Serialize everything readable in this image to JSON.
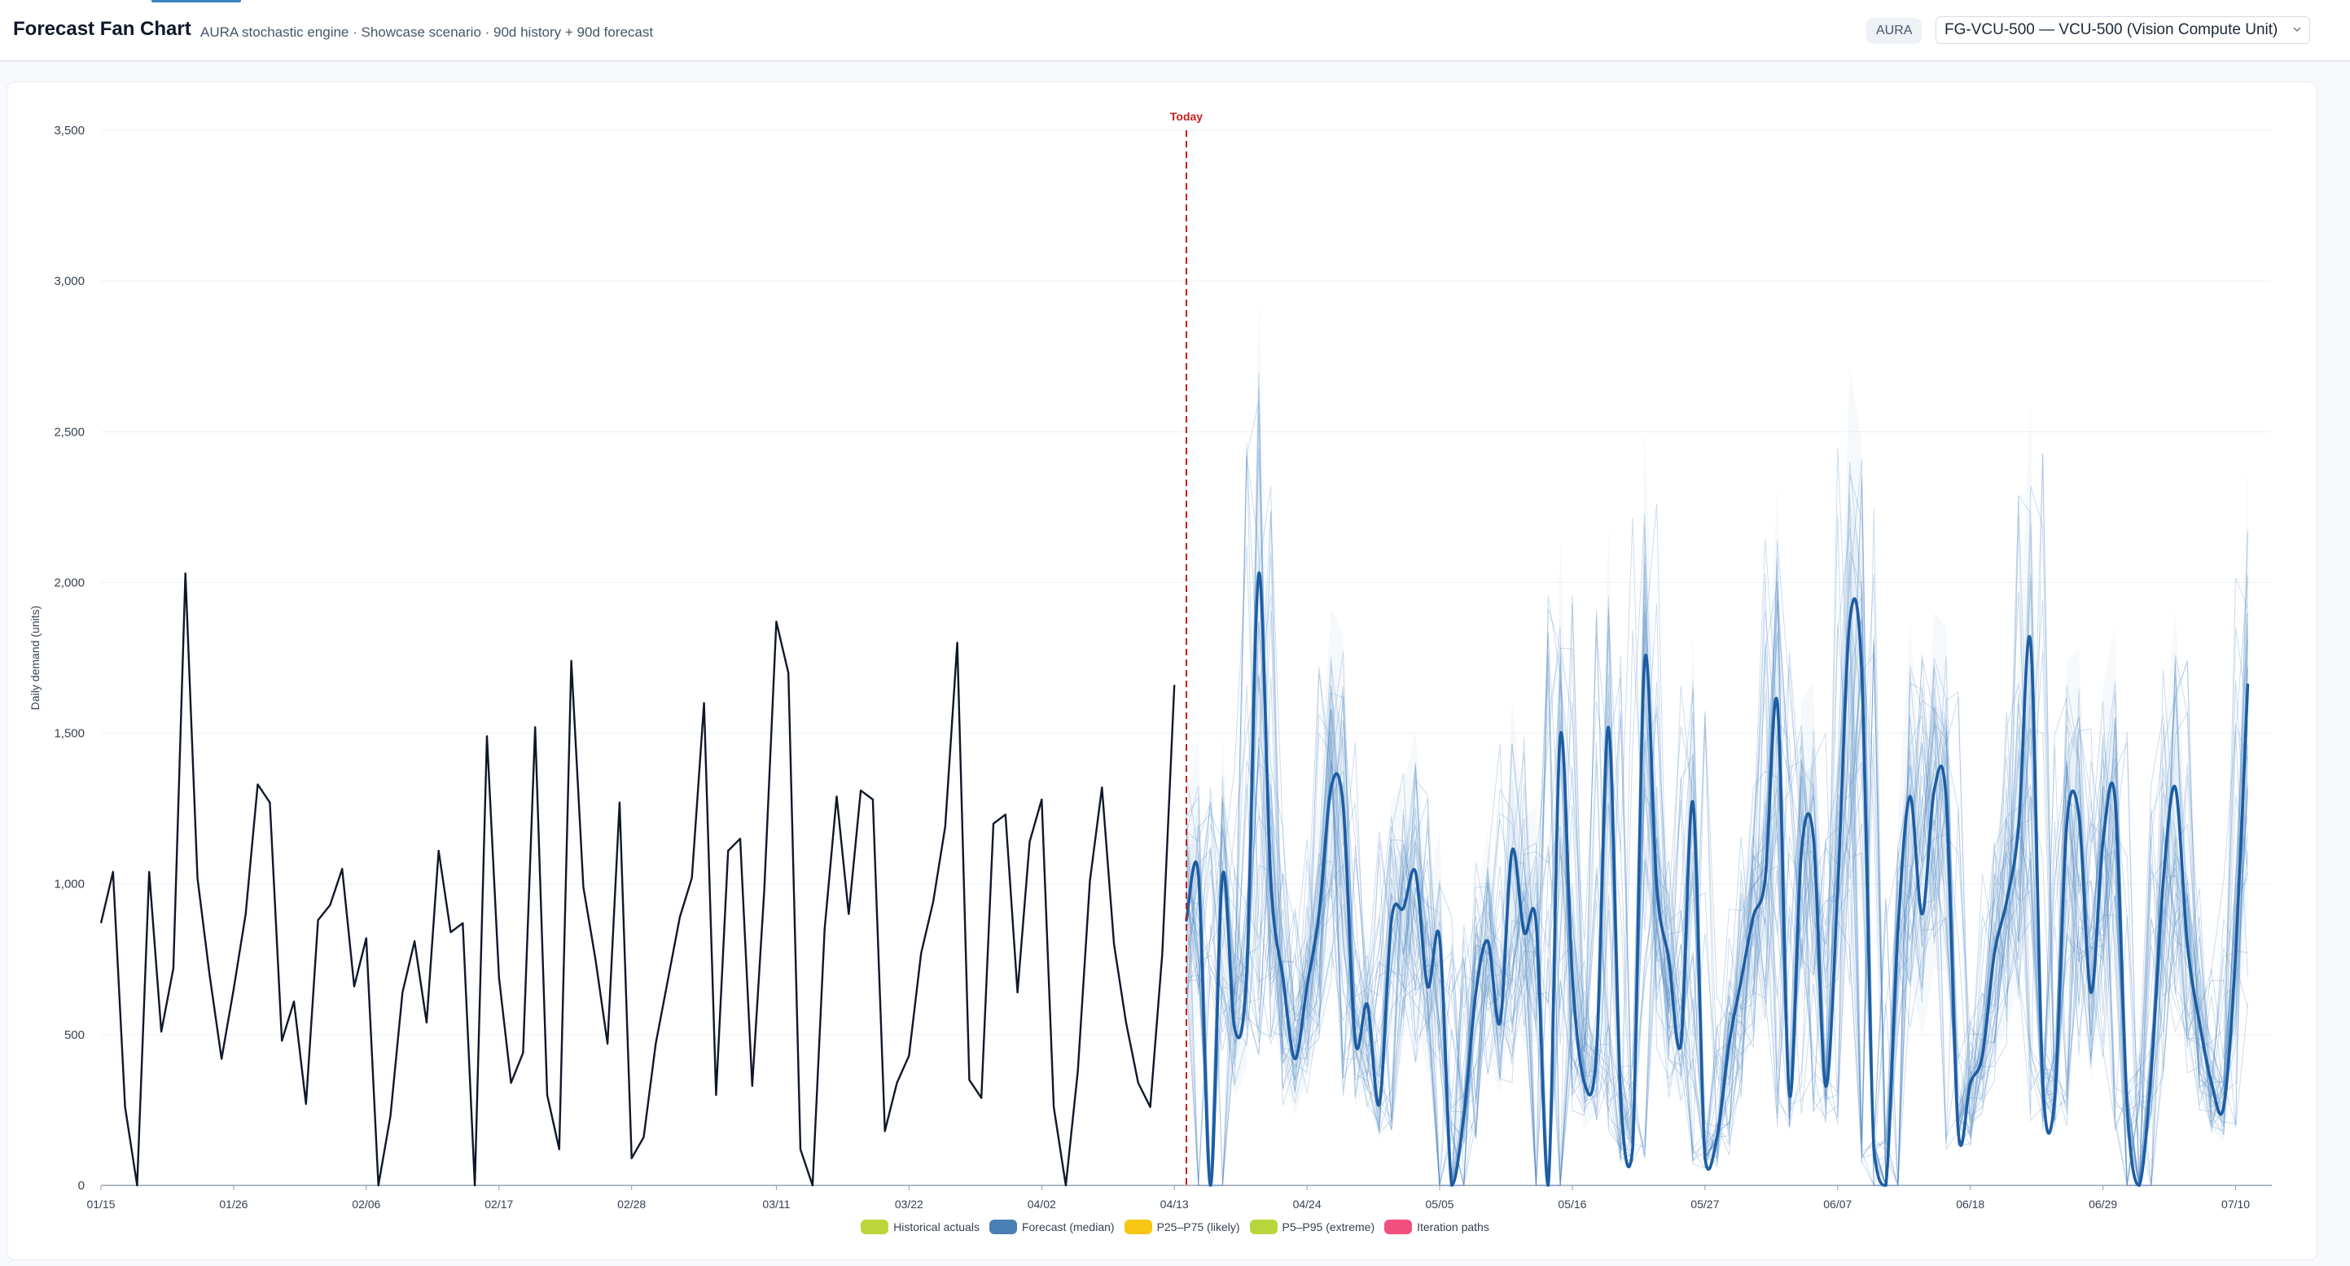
{
  "header": {
    "title": "Forecast Fan Chart",
    "subtitle": "AURA stochastic engine · Showcase scenario · 90d history + 90d forecast",
    "engine_badge": "AURA",
    "product_select": "FG-VCU-500 — VCU-500 (Vision Compute Unit)"
  },
  "colors": {
    "historical": "#0f172a",
    "median": "#1c5da3",
    "iteration_paths": "#4a86c2",
    "today_line": "#c81e1e",
    "legend_historical": "#bcd63c",
    "legend_median": "#4a7fb6",
    "legend_p25_p75": "#f7c615",
    "legend_p5_p95": "#b6d63c",
    "legend_iterations": "#f2507f"
  },
  "chart_data": {
    "type": "line",
    "ylabel": "Daily demand (units)",
    "ylim": [
      0,
      3500
    ],
    "yticks": [
      0,
      500,
      1000,
      1500,
      2000,
      2500,
      3000,
      3500
    ],
    "ytick_labels": [
      "0",
      "500",
      "1,000",
      "1,500",
      "2,000",
      "2,500",
      "3,000",
      "3,500"
    ],
    "xlim": [
      "01/15",
      "07/13"
    ],
    "xtick_labels": [
      "01/15",
      "01/26",
      "02/06",
      "02/17",
      "02/28",
      "03/11",
      "03/22",
      "04/02",
      "04/13",
      "04/24",
      "05/05",
      "05/16",
      "05/27",
      "06/07",
      "06/18",
      "06/29",
      "07/10"
    ],
    "grid": true,
    "today": {
      "label": "Today",
      "x": "04/14"
    },
    "legend_placement": "bottom-center",
    "legend": [
      "Historical actuals",
      "Forecast (median)",
      "P25–P75 (likely)",
      "P5–P95 (extreme)",
      "Iteration paths"
    ],
    "series": [
      {
        "name": "Historical actuals",
        "start": "01/15",
        "values": [
          870,
          1040,
          260,
          0,
          1040,
          510,
          720,
          2030,
          1020,
          700,
          420,
          650,
          900,
          1330,
          1270,
          480,
          610,
          270,
          880,
          930,
          1050,
          660,
          820,
          0,
          230,
          640,
          810,
          540,
          1110,
          840,
          870,
          0,
          1490,
          690,
          340,
          440,
          1520,
          300,
          120,
          1740,
          990,
          750,
          470,
          1270,
          90,
          160,
          470,
          680,
          890,
          1020,
          1600,
          300,
          1110,
          1150,
          330,
          980,
          1870,
          1700,
          120,
          0,
          850,
          1290,
          900,
          1310,
          1280,
          180,
          340,
          430,
          770,
          940,
          1190,
          1800,
          350,
          290,
          1200,
          1230,
          640,
          1140,
          1280,
          260,
          0,
          380,
          1010,
          1320,
          800,
          540,
          340,
          260,
          770,
          1660
        ]
      },
      {
        "name": "Forecast (median)",
        "start": "04/14",
        "values": [
          880,
          1030,
          0,
          1030,
          520,
          710,
          2030,
          1010,
          690,
          420,
          660,
          900,
          1320,
          1260,
          480,
          600,
          270,
          880,
          920,
          1040,
          660,
          820,
          0,
          230,
          640,
          810,
          540,
          1110,
          840,
          870,
          0,
          1490,
          690,
          340,
          440,
          1520,
          300,
          120,
          1740,
          990,
          750,
          470,
          1270,
          90,
          160,
          470,
          680,
          890,
          1020,
          1600,
          300,
          1110,
          1150,
          330,
          980,
          1870,
          1700,
          120,
          0,
          850,
          1290,
          900,
          1310,
          1280,
          180,
          340,
          430,
          770,
          940,
          1190,
          1800,
          350,
          290,
          1200,
          1230,
          640,
          1140,
          1280,
          260,
          0,
          380,
          1010,
          1320,
          800,
          540,
          340,
          260,
          770,
          1660
        ]
      }
    ]
  }
}
